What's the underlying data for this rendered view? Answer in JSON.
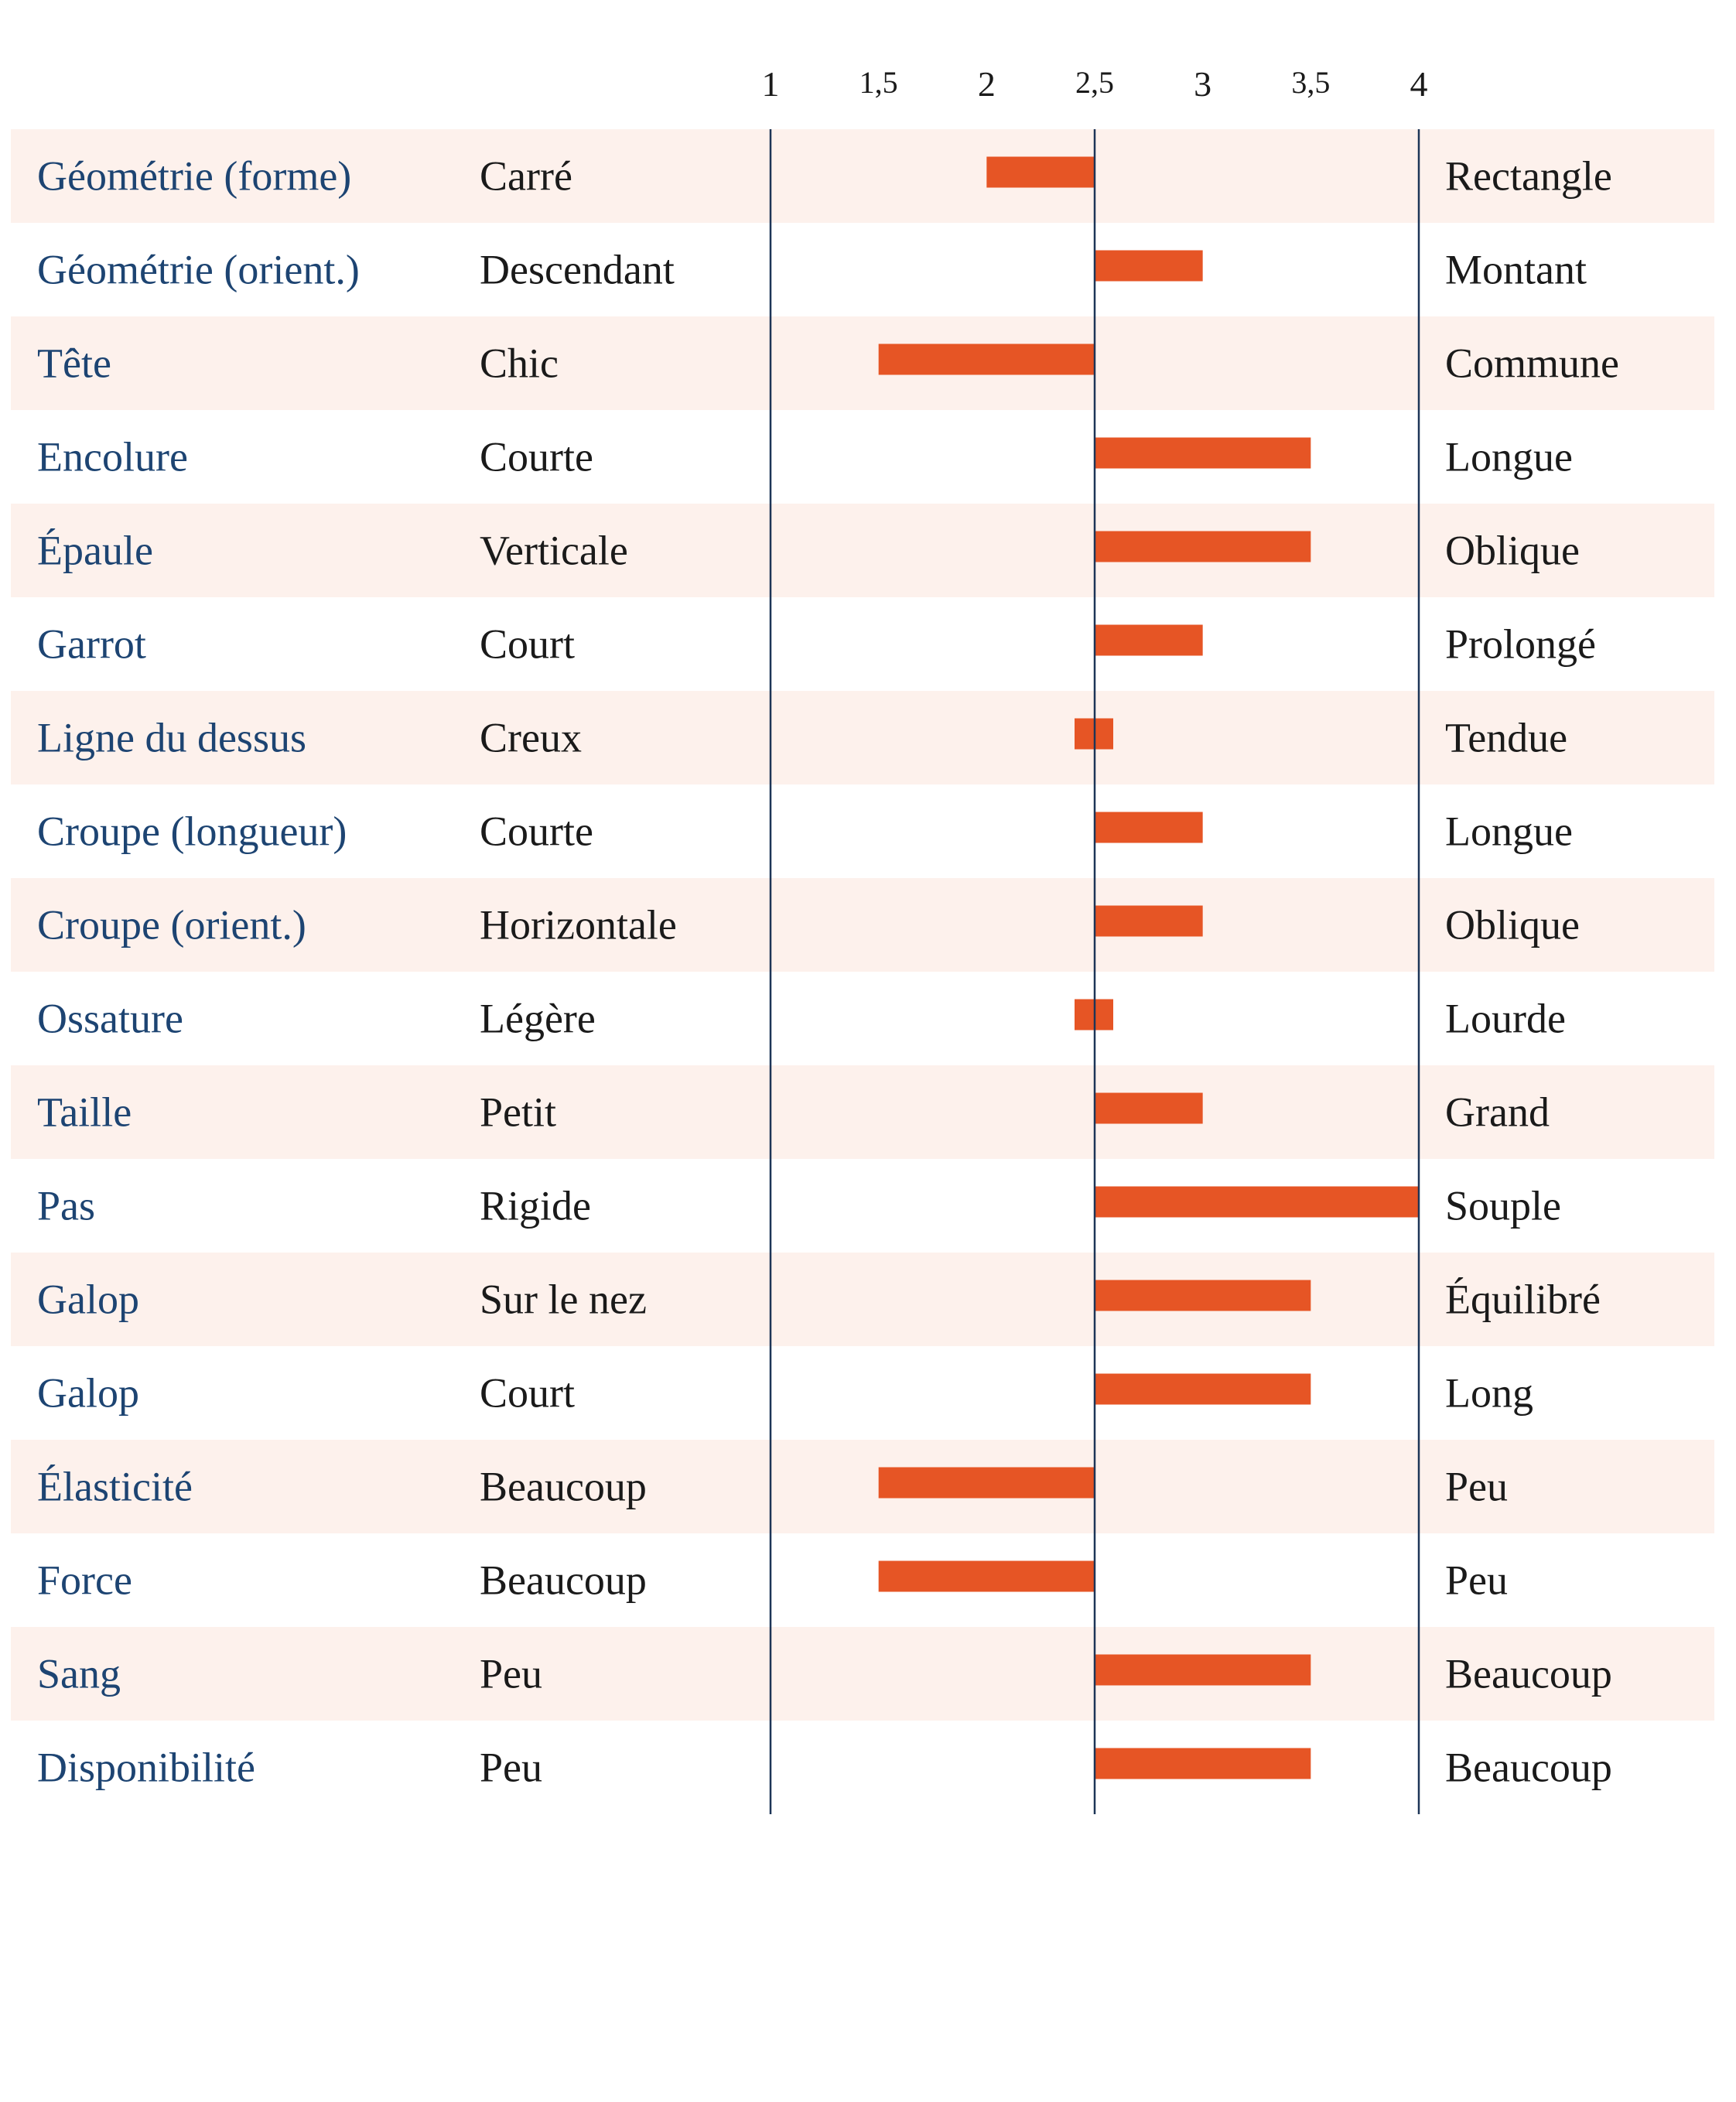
{
  "chart_data": {
    "type": "bar",
    "orientation": "horizontal-diverging",
    "baseline": 2.5,
    "xlim": [
      1,
      4
    ],
    "ticks": [
      {
        "value": 1,
        "label": "1"
      },
      {
        "value": 1.5,
        "label": "1,5"
      },
      {
        "value": 2,
        "label": "2"
      },
      {
        "value": 2.5,
        "label": "2,5"
      },
      {
        "value": 3,
        "label": "3"
      },
      {
        "value": 3.5,
        "label": "3,5"
      },
      {
        "value": 4,
        "label": "4"
      }
    ],
    "rows": [
      {
        "trait": "Géométrie (forme)",
        "low": "Carré",
        "high": "Rectangle",
        "value": 2
      },
      {
        "trait": "Géométrie (orient.)",
        "low": "Descendant",
        "high": "Montant",
        "value": 3
      },
      {
        "trait": "Tête",
        "low": "Chic",
        "high": "Commune",
        "value": 1.5
      },
      {
        "trait": "Encolure",
        "low": "Courte",
        "high": "Longue",
        "value": 3.5
      },
      {
        "trait": "Épaule",
        "low": "Verticale",
        "high": "Oblique",
        "value": 3.5
      },
      {
        "trait": "Garrot",
        "low": "Court",
        "high": "Prolongé",
        "value": 3
      },
      {
        "trait": "Ligne du dessus",
        "low": "Creux",
        "high": "Tendue",
        "value": 2.5
      },
      {
        "trait": "Croupe (longueur)",
        "low": "Courte",
        "high": "Longue",
        "value": 3
      },
      {
        "trait": "Croupe (orient.)",
        "low": "Horizontale",
        "high": "Oblique",
        "value": 3
      },
      {
        "trait": "Ossature",
        "low": "Légère",
        "high": "Lourde",
        "value": 2.5
      },
      {
        "trait": "Taille",
        "low": "Petit",
        "high": "Grand",
        "value": 3
      },
      {
        "trait": "Pas",
        "low": "Rigide",
        "high": "Souple",
        "value": 4
      },
      {
        "trait": "Galop",
        "low": "Sur le nez",
        "high": "Équilibré",
        "value": 3.5
      },
      {
        "trait": "Galop",
        "low": "Court",
        "high": "Long",
        "value": 3.5
      },
      {
        "trait": "Élasticité",
        "low": "Beaucoup",
        "high": "Peu",
        "value": 1.5
      },
      {
        "trait": "Force",
        "low": "Beaucoup",
        "high": "Peu",
        "value": 1.5
      },
      {
        "trait": "Sang",
        "low": "Peu",
        "high": "Beaucoup",
        "value": 3.5
      },
      {
        "trait": "Disponibilité",
        "low": "Peu",
        "high": "Beaucoup",
        "value": 3.5
      }
    ],
    "colors": {
      "bar": "#e65525",
      "row_band": "#fdf1ec",
      "axis_line": "#1d3557",
      "trait_text": "#1d4472",
      "pole_text": "#1a1a1a"
    }
  }
}
